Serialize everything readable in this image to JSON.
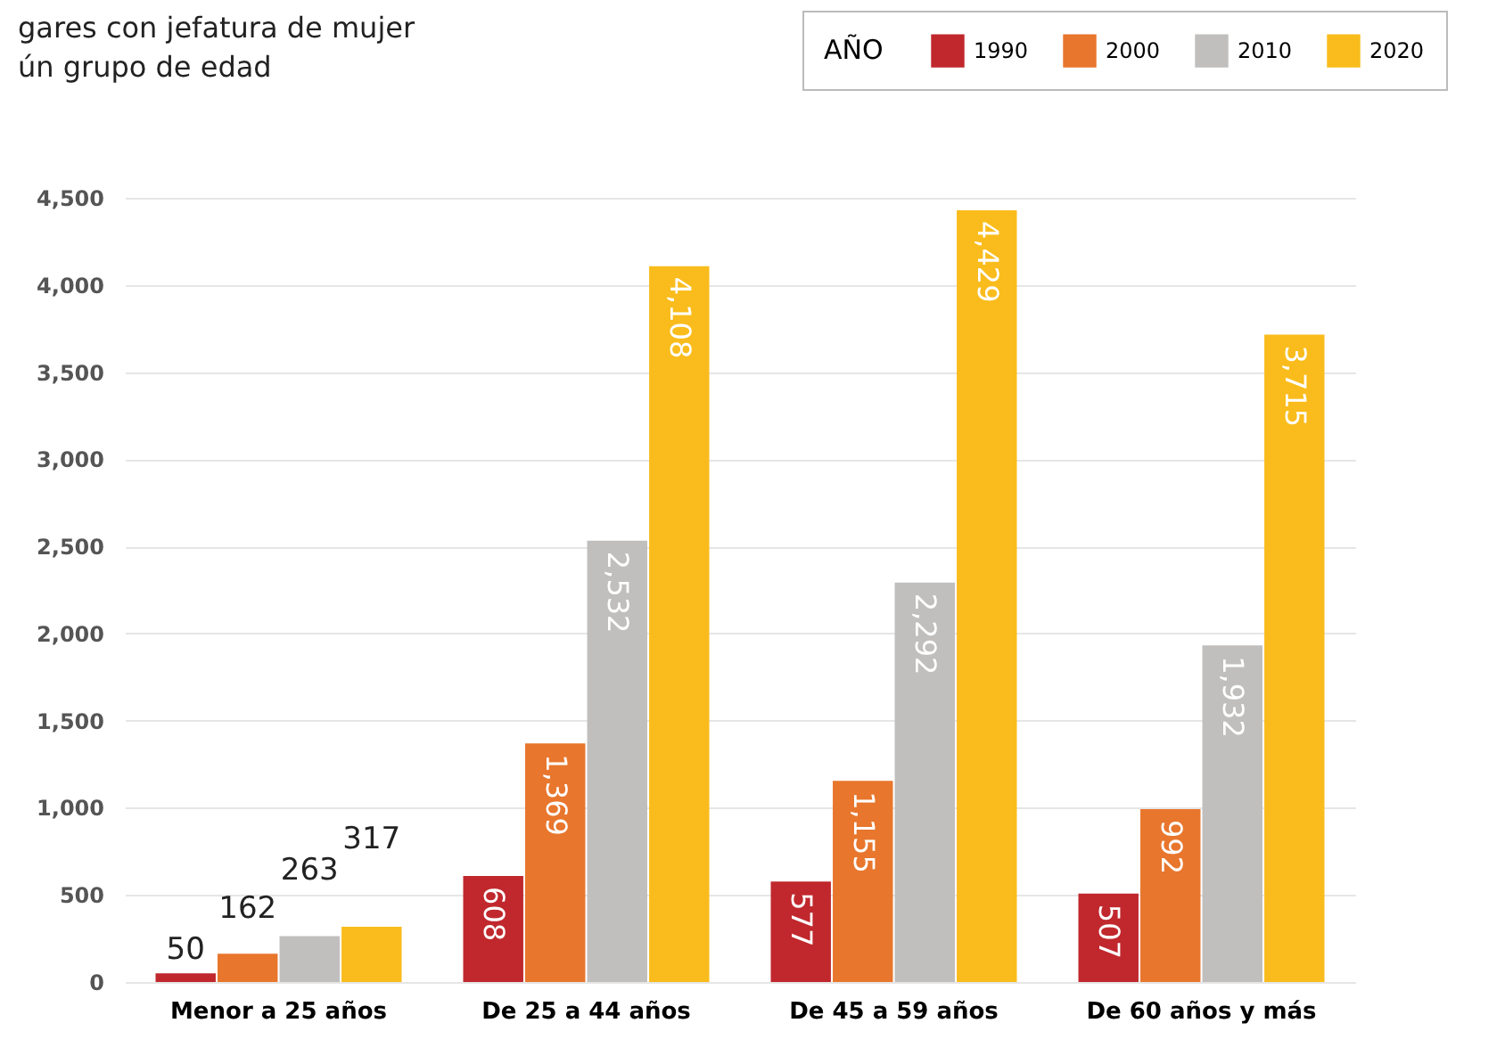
{
  "chart_data": {
    "type": "bar",
    "title": [
      "gares con jefatura de mujer",
      "ún grupo de edad"
    ],
    "legend_title": "AÑO",
    "categories": [
      "Menor a 25 años",
      "De 25 a 44 años",
      "De 45 a 59 años",
      "De 60 años y más"
    ],
    "series": [
      {
        "name": "1990",
        "color": "#c0282d",
        "values": [
          50,
          608,
          577,
          507
        ],
        "value_labels": [
          "50",
          "608",
          "577",
          "507"
        ]
      },
      {
        "name": "2000",
        "color": "#e8762d",
        "values": [
          162,
          1369,
          1155,
          992
        ],
        "value_labels": [
          "162",
          "1,369",
          "1,155",
          "992"
        ]
      },
      {
        "name": "2010",
        "color": "#c0bfbe",
        "values": [
          263,
          2532,
          2292,
          1932
        ],
        "value_labels": [
          "263",
          "2,532",
          "2,292",
          "1,932"
        ]
      },
      {
        "name": "2020",
        "color": "#f9bc1c",
        "values": [
          317,
          4108,
          4429,
          3715
        ],
        "value_labels": [
          "317",
          "4,108",
          "4,429",
          "3,715"
        ]
      }
    ],
    "ylim": [
      0,
      4500
    ],
    "yticks": [
      0,
      500,
      {
        "value": 1000,
        "label": "1,000"
      },
      {
        "value": 1500,
        "label": "1,500"
      },
      {
        "value": 2000,
        "label": "2,000"
      },
      {
        "value": 2500,
        "label": "2,500"
      },
      {
        "value": 3000,
        "label": "3,000"
      },
      {
        "value": 3500,
        "label": "3,500"
      },
      {
        "value": 4000,
        "label": "4,000"
      },
      {
        "value": 4500,
        "label": "4,500"
      }
    ],
    "grid": "y",
    "legend": "top right"
  }
}
